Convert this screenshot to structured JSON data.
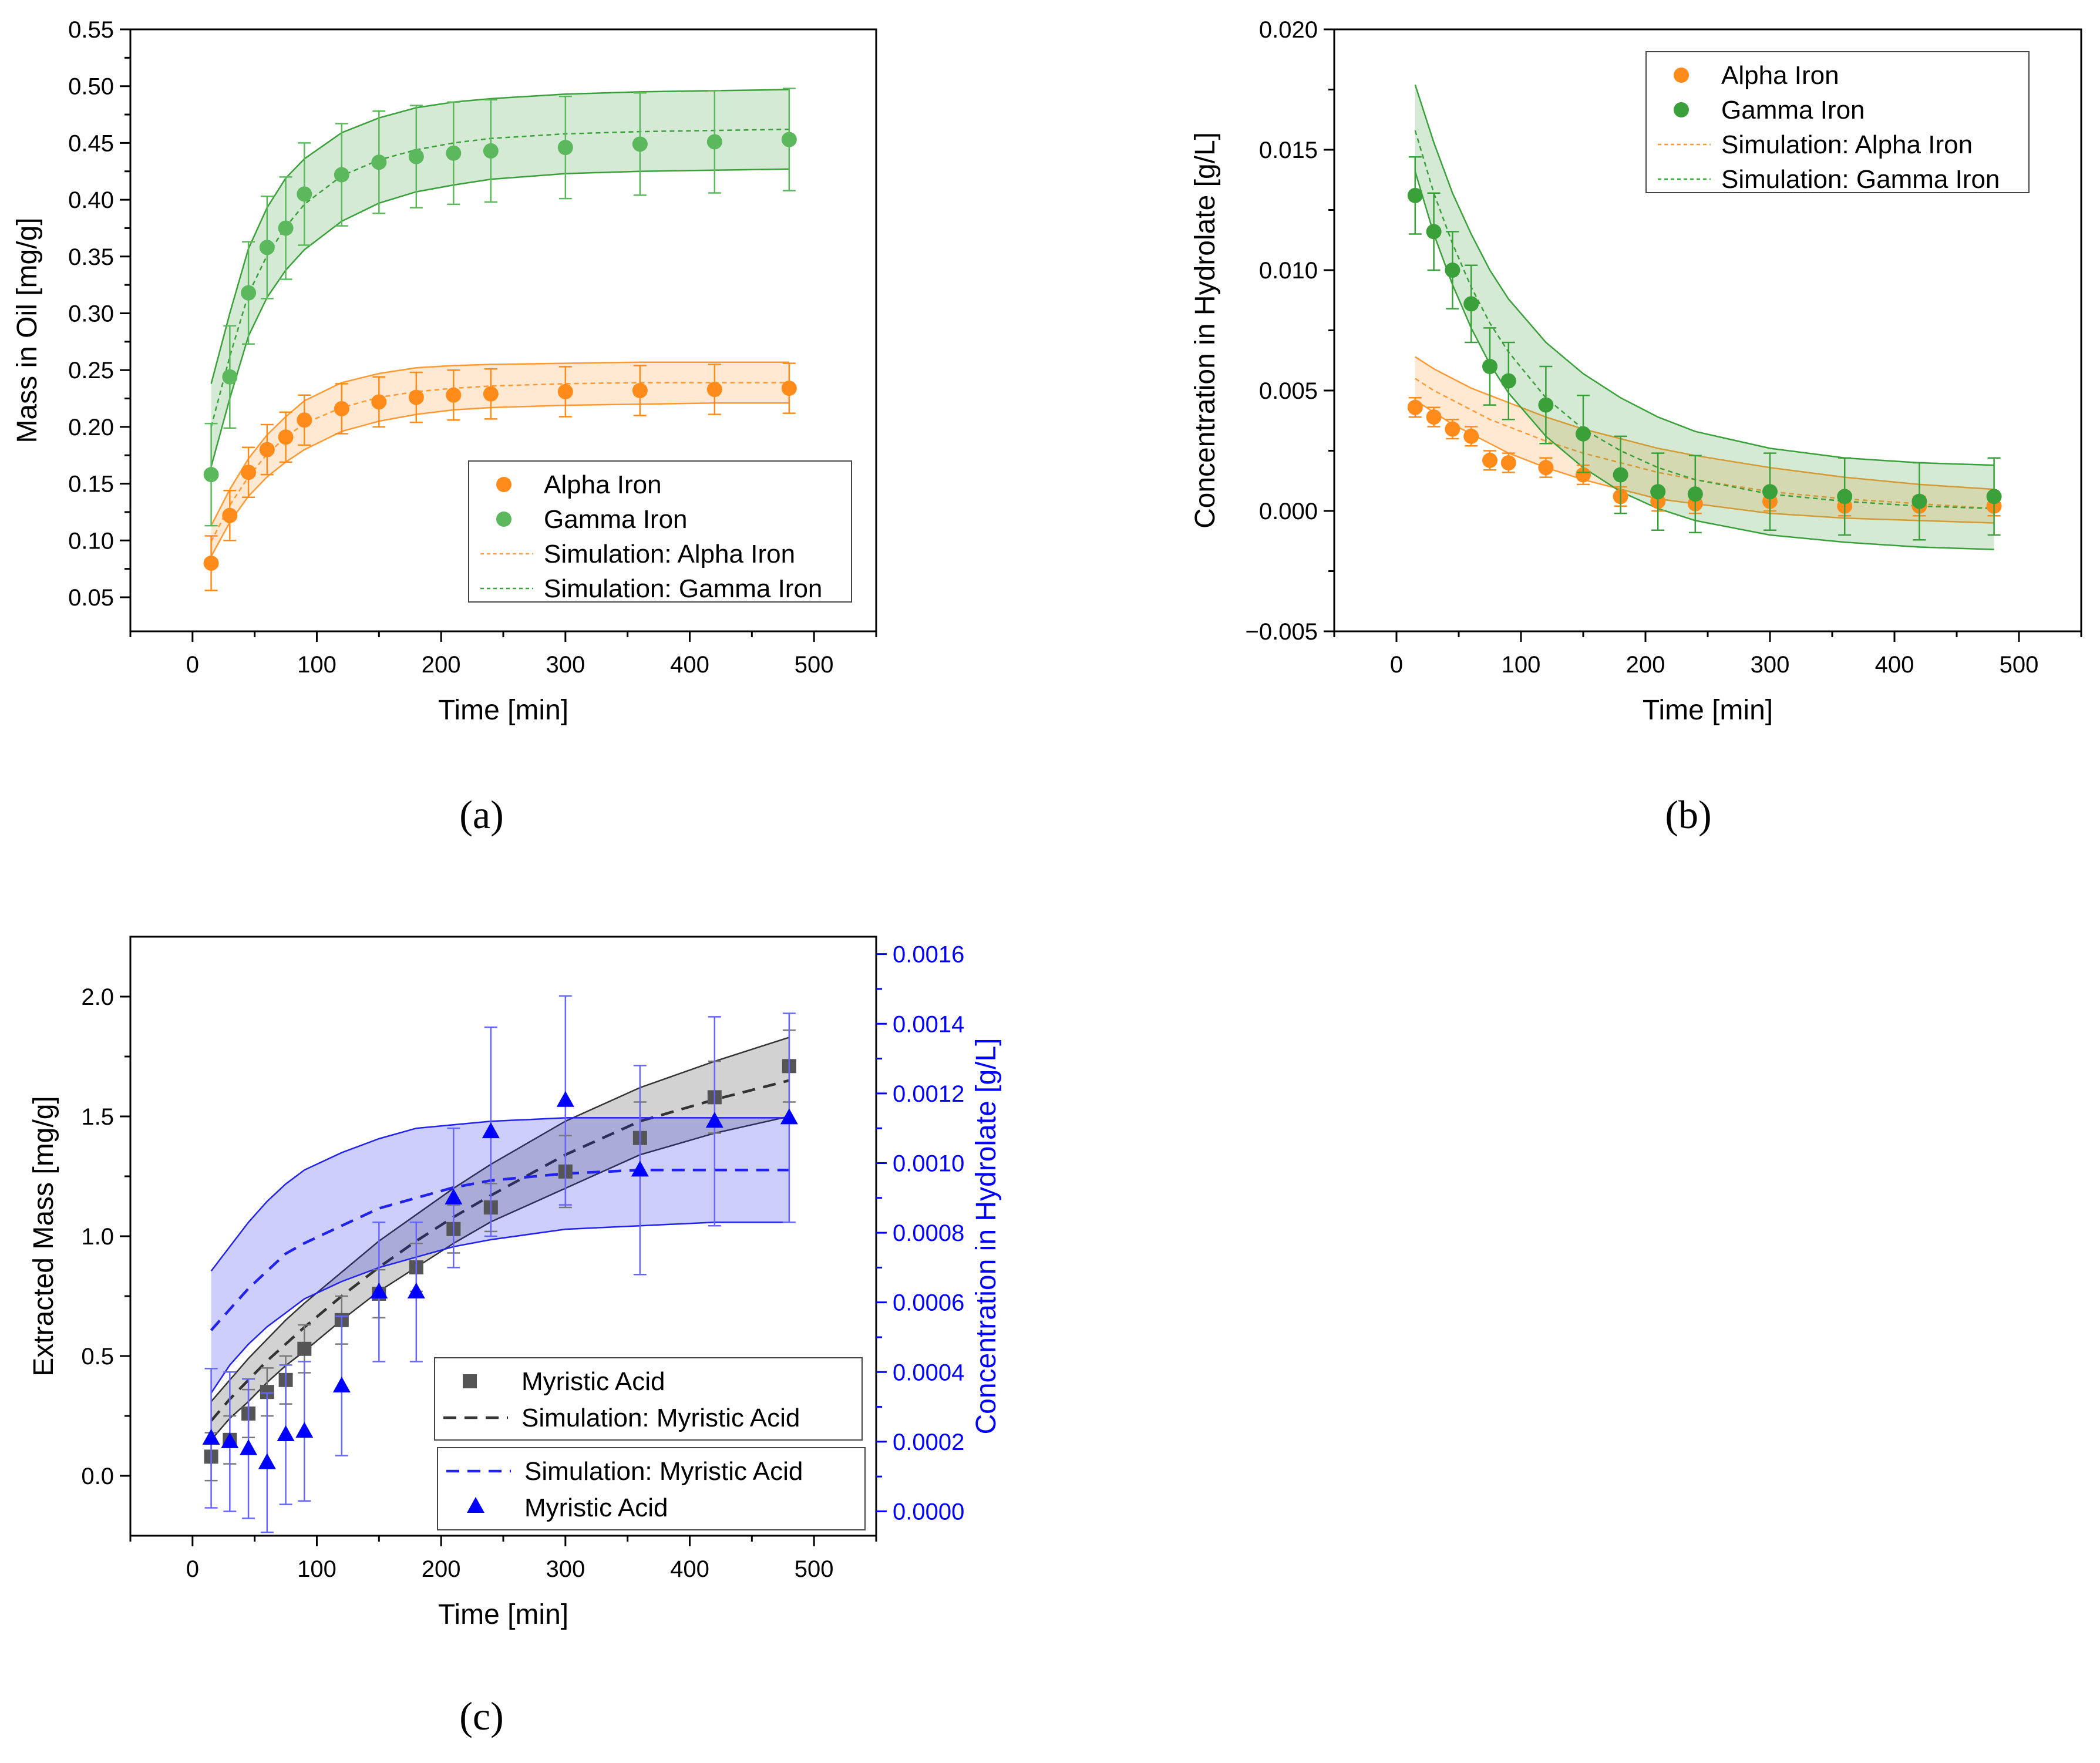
{
  "chart_data": [
    {
      "id": "a",
      "type": "scatter",
      "panel_label": "(a)",
      "xlabel": "Time [min]",
      "ylabel": "Mass in Oil [mg/g]",
      "xlim": [
        -50,
        550
      ],
      "ylim": [
        0.02,
        0.55
      ],
      "xticks": [
        0,
        100,
        200,
        300,
        400,
        500
      ],
      "yticks": [
        0.05,
        0.1,
        0.15,
        0.2,
        0.25,
        0.3,
        0.35,
        0.4,
        0.45,
        0.5,
        0.55
      ],
      "ytick_labels": [
        "0.05",
        "0.10",
        "0.15",
        "0.20",
        "0.25",
        "0.30",
        "0.35",
        "0.40",
        "0.45",
        "0.50",
        "0.55"
      ],
      "legend_position": "bottom-right",
      "legend": [
        "Alpha Iron",
        "Gamma Iron",
        "Simulation: Alpha Iron",
        "Simulation: Gamma Iron"
      ],
      "series": [
        {
          "name": "Alpha Iron",
          "kind": "points",
          "color": "#ff8c1a",
          "x": [
            15,
            30,
            45,
            60,
            75,
            90,
            120,
            150,
            180,
            210,
            240,
            300,
            360,
            420,
            480
          ],
          "y": [
            0.08,
            0.122,
            0.16,
            0.18,
            0.191,
            0.206,
            0.216,
            0.222,
            0.226,
            0.228,
            0.229,
            0.231,
            0.232,
            0.233,
            0.234
          ],
          "err": [
            0.024,
            0.022,
            0.022,
            0.022,
            0.022,
            0.022,
            0.022,
            0.022,
            0.022,
            0.022,
            0.022,
            0.022,
            0.022,
            0.022,
            0.022
          ]
        },
        {
          "name": "Gamma Iron",
          "kind": "points",
          "color": "#5cb85c",
          "x": [
            15,
            30,
            45,
            60,
            75,
            90,
            120,
            150,
            180,
            210,
            240,
            300,
            360,
            420,
            480
          ],
          "y": [
            0.158,
            0.244,
            0.318,
            0.358,
            0.375,
            0.405,
            0.422,
            0.433,
            0.438,
            0.441,
            0.443,
            0.446,
            0.449,
            0.451,
            0.453
          ],
          "err": [
            0.045,
            0.045,
            0.045,
            0.045,
            0.045,
            0.045,
            0.045,
            0.045,
            0.045,
            0.045,
            0.045,
            0.045,
            0.045,
            0.045,
            0.045
          ]
        },
        {
          "name": "Simulation: Alpha Iron",
          "kind": "band",
          "color": "#ff9933",
          "x": [
            15,
            30,
            45,
            60,
            75,
            90,
            120,
            150,
            180,
            210,
            240,
            300,
            360,
            420,
            480
          ],
          "y": [
            0.099,
            0.131,
            0.156,
            0.176,
            0.191,
            0.203,
            0.217,
            0.226,
            0.231,
            0.234,
            0.236,
            0.238,
            0.239,
            0.239,
            0.239
          ],
          "lower": [
            0.086,
            0.116,
            0.139,
            0.156,
            0.169,
            0.18,
            0.196,
            0.205,
            0.211,
            0.215,
            0.217,
            0.219,
            0.22,
            0.221,
            0.221
          ],
          "upper": [
            0.113,
            0.145,
            0.172,
            0.193,
            0.209,
            0.223,
            0.239,
            0.247,
            0.252,
            0.254,
            0.255,
            0.256,
            0.257,
            0.257,
            0.257
          ]
        },
        {
          "name": "Simulation: Gamma Iron",
          "kind": "band",
          "color": "#3aa03a",
          "x": [
            15,
            30,
            45,
            60,
            75,
            90,
            120,
            150,
            180,
            210,
            240,
            300,
            360,
            420,
            480
          ],
          "y": [
            0.2,
            0.262,
            0.317,
            0.351,
            0.376,
            0.396,
            0.421,
            0.435,
            0.444,
            0.45,
            0.454,
            0.458,
            0.46,
            0.461,
            0.462
          ],
          "lower": [
            0.165,
            0.225,
            0.28,
            0.314,
            0.338,
            0.356,
            0.381,
            0.397,
            0.407,
            0.413,
            0.418,
            0.423,
            0.425,
            0.426,
            0.427
          ],
          "upper": [
            0.238,
            0.3,
            0.357,
            0.393,
            0.419,
            0.436,
            0.459,
            0.472,
            0.481,
            0.486,
            0.489,
            0.493,
            0.495,
            0.496,
            0.497
          ]
        }
      ]
    },
    {
      "id": "b",
      "type": "scatter",
      "panel_label": "(b)",
      "xlabel": "Time [min]",
      "ylabel": "Concentration in Hydrolate [g/L]",
      "xlim": [
        -50,
        550
      ],
      "ylim": [
        -0.005,
        0.02
      ],
      "xticks": [
        0,
        100,
        200,
        300,
        400,
        500
      ],
      "yticks": [
        -0.005,
        0.0,
        0.005,
        0.01,
        0.015,
        0.02
      ],
      "ytick_labels": [
        "−0.005",
        "0.000",
        "0.005",
        "0.010",
        "0.015",
        "0.020"
      ],
      "legend_position": "top-right",
      "legend": [
        "Alpha Iron",
        "Gamma Iron",
        "Simulation: Alpha Iron",
        "Simulation: Gamma Iron"
      ],
      "series": [
        {
          "name": "Alpha Iron",
          "kind": "points",
          "color": "#ff8c1a",
          "x": [
            15,
            30,
            45,
            60,
            75,
            90,
            120,
            150,
            180,
            210,
            240,
            300,
            360,
            420,
            480
          ],
          "y": [
            0.0043,
            0.0039,
            0.0034,
            0.0031,
            0.0021,
            0.002,
            0.0018,
            0.0015,
            0.0006,
            0.0004,
            0.0003,
            0.0004,
            0.0002,
            0.0002,
            0.0002
          ],
          "err": [
            0.0004,
            0.0004,
            0.0004,
            0.0004,
            0.0004,
            0.0004,
            0.0004,
            0.0004,
            0.0004,
            0.0004,
            0.0004,
            0.0004,
            0.0004,
            0.0004,
            0.0004
          ]
        },
        {
          "name": "Gamma Iron",
          "kind": "points",
          "color": "#3aa03a",
          "x": [
            15,
            30,
            45,
            60,
            75,
            90,
            120,
            150,
            180,
            210,
            240,
            300,
            360,
            420,
            480
          ],
          "y": [
            0.0131,
            0.0116,
            0.01,
            0.0086,
            0.006,
            0.0054,
            0.0044,
            0.0032,
            0.0015,
            0.0008,
            0.0007,
            0.0008,
            0.0006,
            0.0004,
            0.0006
          ],
          "err": [
            0.0016,
            0.0016,
            0.0016,
            0.0016,
            0.0016,
            0.0016,
            0.0016,
            0.0016,
            0.0016,
            0.0016,
            0.0016,
            0.0016,
            0.0016,
            0.0016,
            0.0016
          ]
        },
        {
          "name": "Simulation: Alpha Iron",
          "kind": "band",
          "color": "#ff9933",
          "x": [
            15,
            30,
            45,
            60,
            75,
            90,
            120,
            150,
            180,
            210,
            240,
            300,
            360,
            420,
            480
          ],
          "y": [
            0.0055,
            0.005,
            0.0046,
            0.0042,
            0.0038,
            0.0035,
            0.0029,
            0.0024,
            0.002,
            0.0016,
            0.0013,
            0.0008,
            0.0005,
            0.0003,
            0.0001
          ],
          "lower": [
            0.0046,
            0.0041,
            0.0036,
            0.0032,
            0.0028,
            0.0024,
            0.0018,
            0.0013,
            0.0009,
            0.0005,
            0.0003,
            -0.0001,
            -0.0003,
            -0.0004,
            -0.0005
          ],
          "upper": [
            0.0064,
            0.0059,
            0.0055,
            0.0051,
            0.0048,
            0.0045,
            0.0039,
            0.0034,
            0.003,
            0.0026,
            0.0023,
            0.0018,
            0.0014,
            0.0011,
            0.0009
          ]
        },
        {
          "name": "Simulation: Gamma Iron",
          "kind": "band",
          "color": "#3aa03a",
          "x": [
            15,
            30,
            45,
            60,
            75,
            90,
            120,
            150,
            180,
            210,
            240,
            300,
            360,
            420,
            480
          ],
          "y": [
            0.0158,
            0.0132,
            0.0111,
            0.0093,
            0.0078,
            0.0066,
            0.0047,
            0.0034,
            0.0025,
            0.0018,
            0.0013,
            0.0007,
            0.0004,
            0.0002,
            0.0001
          ],
          "lower": [
            0.0141,
            0.0115,
            0.0094,
            0.0076,
            0.0061,
            0.0049,
            0.0031,
            0.0018,
            0.0008,
            0.0001,
            -0.0004,
            -0.001,
            -0.0013,
            -0.0015,
            -0.0016
          ],
          "upper": [
            0.0177,
            0.0153,
            0.0132,
            0.0115,
            0.01,
            0.0088,
            0.007,
            0.0057,
            0.0047,
            0.0039,
            0.0033,
            0.0026,
            0.0022,
            0.002,
            0.0019
          ]
        }
      ]
    },
    {
      "id": "c",
      "type": "scatter",
      "panel_label": "(c)",
      "xlabel": "Time [min]",
      "ylabel": "Extracted Mass [mg/g]",
      "y2label": "Concentration in Hydrolate [g/L]",
      "xlim": [
        -50,
        550
      ],
      "ylim": [
        -0.25,
        2.25
      ],
      "y2lim": [
        -7e-05,
        0.00165
      ],
      "xticks": [
        0,
        100,
        200,
        300,
        400,
        500
      ],
      "yticks": [
        0.0,
        0.5,
        1.0,
        1.5,
        2.0
      ],
      "ytick_labels": [
        "0.0",
        "0.5",
        "1.0",
        "1.5",
        "2.0"
      ],
      "y2ticks": [
        0.0,
        0.0002,
        0.0004,
        0.0006,
        0.0008,
        0.001,
        0.0012,
        0.0014,
        0.0016
      ],
      "y2tick_labels": [
        "0.0000",
        "0.0002",
        "0.0004",
        "0.0006",
        "0.0008",
        "0.0010",
        "0.0012",
        "0.0014",
        "0.0016"
      ],
      "legend_position": "bottom-right",
      "legend_left": [
        "Myristic Acid",
        "Simulation: Myristic Acid"
      ],
      "legend_right": [
        "Simulation: Myristic Acid",
        "Myristic Acid"
      ],
      "series": [
        {
          "name": "Myristic Acid",
          "axis": "left",
          "kind": "squares",
          "color": "#555555",
          "x": [
            15,
            30,
            45,
            60,
            75,
            90,
            120,
            150,
            180,
            210,
            240,
            300,
            360,
            420,
            480
          ],
          "y": [
            0.08,
            0.15,
            0.26,
            0.35,
            0.4,
            0.53,
            0.65,
            0.76,
            0.87,
            1.03,
            1.12,
            1.27,
            1.41,
            1.58,
            1.71
          ],
          "err": [
            0.1,
            0.1,
            0.1,
            0.1,
            0.1,
            0.1,
            0.1,
            0.1,
            0.1,
            0.1,
            0.1,
            0.15,
            0.15,
            0.15,
            0.15
          ]
        },
        {
          "name": "Simulation: Myristic Acid",
          "axis": "left",
          "kind": "band",
          "color": "#333333",
          "x": [
            15,
            30,
            45,
            60,
            75,
            90,
            120,
            150,
            180,
            210,
            240,
            300,
            360,
            420,
            480
          ],
          "y": [
            0.23,
            0.32,
            0.4,
            0.48,
            0.55,
            0.62,
            0.75,
            0.87,
            0.98,
            1.08,
            1.17,
            1.34,
            1.48,
            1.57,
            1.65
          ],
          "lower": [
            0.15,
            0.24,
            0.31,
            0.39,
            0.46,
            0.52,
            0.65,
            0.77,
            0.87,
            0.97,
            1.06,
            1.2,
            1.34,
            1.43,
            1.5
          ],
          "upper": [
            0.31,
            0.4,
            0.49,
            0.57,
            0.65,
            0.72,
            0.85,
            0.98,
            1.09,
            1.2,
            1.3,
            1.48,
            1.62,
            1.73,
            1.83
          ]
        },
        {
          "name": "Simulation: Myristic Acid",
          "axis": "right",
          "kind": "band",
          "color": "#2222ee",
          "x": [
            15,
            30,
            45,
            60,
            75,
            90,
            120,
            150,
            180,
            210,
            240,
            300,
            360,
            420,
            480
          ],
          "y": [
            0.00052,
            0.00058,
            0.00064,
            0.00069,
            0.00074,
            0.00077,
            0.00082,
            0.00087,
            0.0009,
            0.00093,
            0.00095,
            0.00097,
            0.00098,
            0.00098,
            0.00098
          ],
          "lower": [
            0.00034,
            0.00042,
            0.00048,
            0.00053,
            0.00057,
            0.00061,
            0.00066,
            0.0007,
            0.00073,
            0.00076,
            0.00078,
            0.00081,
            0.00082,
            0.00083,
            0.00083
          ],
          "upper": [
            0.00069,
            0.00076,
            0.00083,
            0.00089,
            0.00094,
            0.00098,
            0.00103,
            0.00107,
            0.0011,
            0.00111,
            0.00112,
            0.00113,
            0.00113,
            0.00113,
            0.00113
          ]
        },
        {
          "name": "Myristic Acid",
          "axis": "right",
          "kind": "triangles",
          "color": "#0000ff",
          "x": [
            15,
            30,
            45,
            60,
            75,
            90,
            120,
            150,
            180,
            210,
            240,
            300,
            360,
            420,
            480
          ],
          "y": [
            0.00021,
            0.0002,
            0.00018,
            0.00014,
            0.00022,
            0.00023,
            0.00036,
            0.00063,
            0.00063,
            0.0009,
            0.00109,
            0.00118,
            0.00098,
            0.00112,
            0.00113
          ],
          "err": [
            0.0002,
            0.0002,
            0.0002,
            0.0002,
            0.0002,
            0.0002,
            0.0002,
            0.0002,
            0.0002,
            0.0002,
            0.0003,
            0.0003,
            0.0003,
            0.0003,
            0.0003
          ]
        }
      ]
    }
  ]
}
